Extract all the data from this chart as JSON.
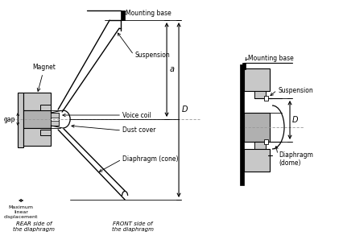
{
  "bg_color": "#ffffff",
  "line_color": "#000000",
  "gray_light": "#c8c8c8",
  "gray_med": "#b0b0b0",
  "dashed_color": "#999999",
  "figsize": [
    4.26,
    3.03
  ],
  "dpi": 100,
  "labels": {
    "magnet": "Magnet",
    "gap": "gap",
    "mounting_base": "Mounting base",
    "suspension": "Suspension",
    "a": "a",
    "D": "D",
    "voice_coil": "Voice coil",
    "dust_cover": "Dust cover",
    "diaphragm_cone": "Diaphragm (cone)",
    "max_disp": "Maximum\nlinear\ndisplacement",
    "rear_side": "REAR side of\nthe diaphragm",
    "front_side": "FRONT side of\nthe diaphragm",
    "mounting_base_r": "Mounting base",
    "suspension_r": "Suspension",
    "D_r": "D",
    "diaphragm_dome": "Diaphragm\n(dome)"
  }
}
